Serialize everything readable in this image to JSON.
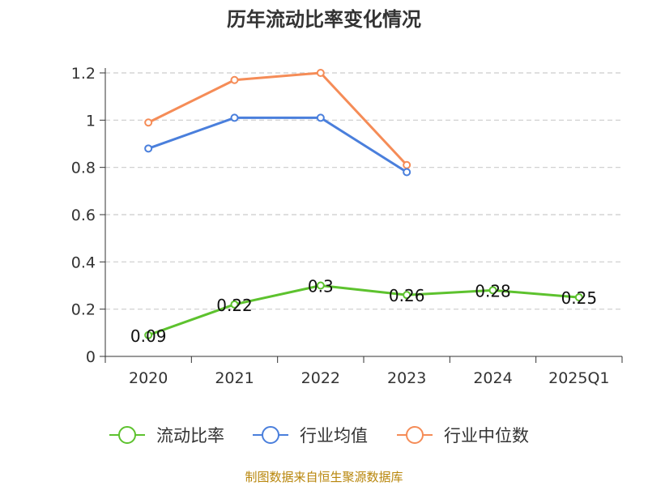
{
  "chart_data": {
    "type": "line",
    "title": "历年流动比率变化情况",
    "categories": [
      "2020",
      "2021",
      "2022",
      "2023",
      "2024",
      "2025Q1"
    ],
    "ylim": [
      0,
      1.2
    ],
    "yticks": [
      "0",
      "0.2",
      "0.4",
      "0.6",
      "0.8",
      "1",
      "1.2"
    ],
    "grid": true,
    "legend_position": "bottom",
    "series": [
      {
        "name": "流动比率",
        "color": "#5dc22e",
        "values": [
          0.09,
          0.22,
          0.3,
          0.26,
          0.28,
          0.25
        ],
        "labels": [
          "0.09",
          "0.22",
          "0.3",
          "0.26",
          "0.28",
          "0.25"
        ]
      },
      {
        "name": "行业均值",
        "color": "#4a7fdc",
        "values": [
          0.88,
          1.01,
          1.01,
          0.78,
          null,
          null
        ]
      },
      {
        "name": "行业中位数",
        "color": "#f58c57",
        "values": [
          0.99,
          1.17,
          1.2,
          0.81,
          null,
          null
        ]
      }
    ]
  },
  "footer": {
    "source": "制图数据来自恒生聚源数据库"
  }
}
